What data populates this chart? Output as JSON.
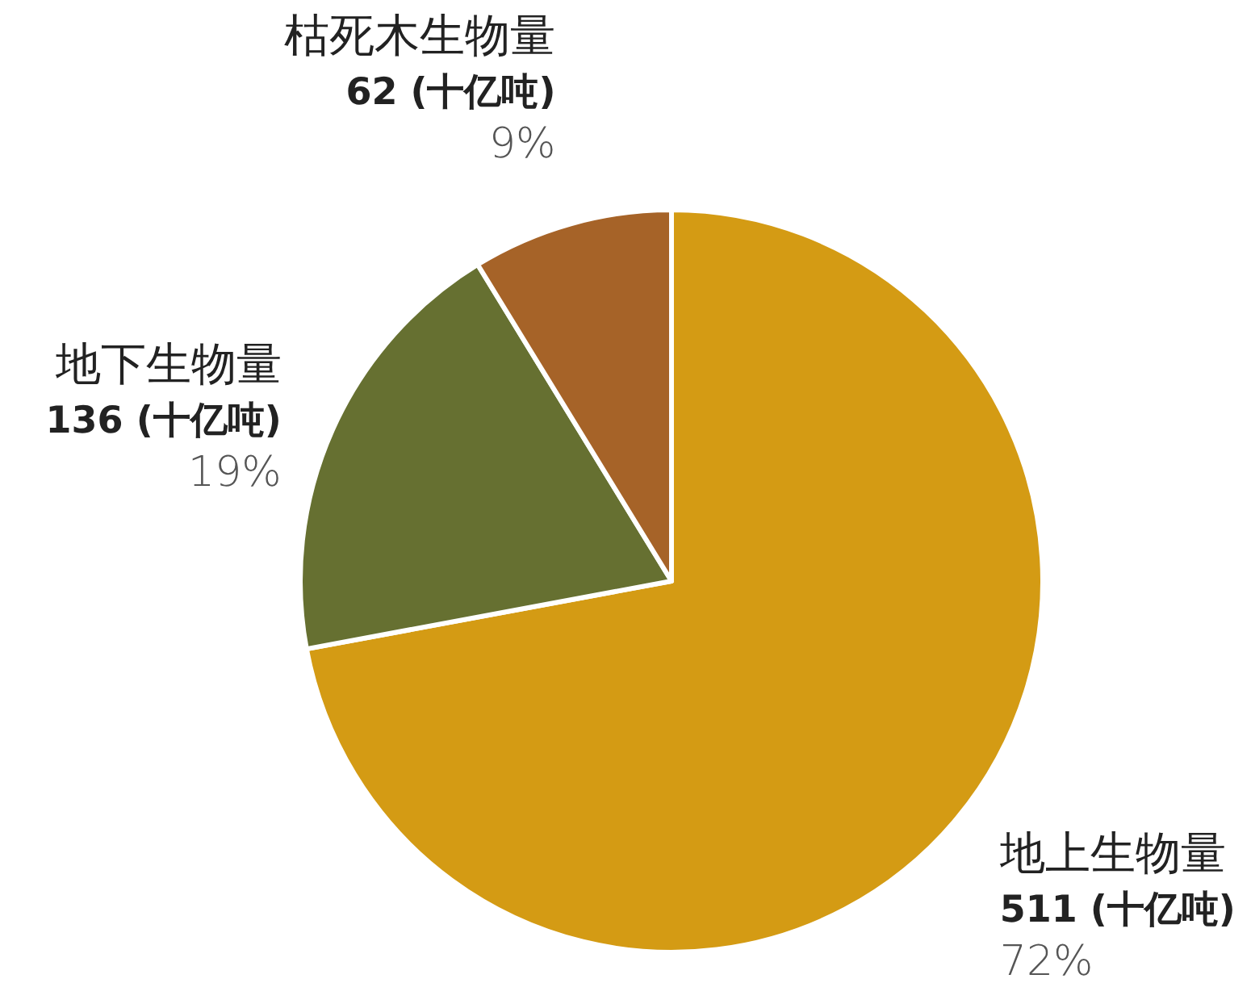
{
  "chart_data": {
    "type": "pie",
    "categories": [
      "地上生物量",
      "地下生物量",
      "枯死木生物量"
    ],
    "values": [
      511,
      136,
      62
    ],
    "colors": [
      "#d49b14",
      "#667031",
      "#a66328"
    ],
    "value_labels": [
      "511 (十亿吨)\n72%",
      "136 (十亿吨)\n19%",
      "62 (十亿吨)\n9%"
    ]
  }
}
